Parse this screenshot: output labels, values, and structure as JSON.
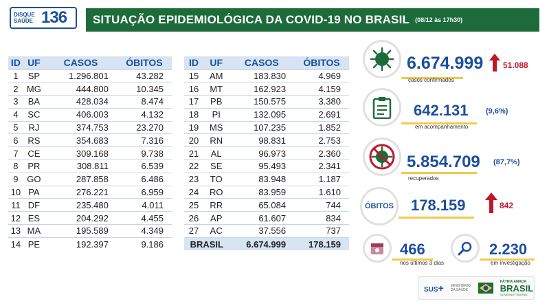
{
  "header": {
    "logo_small": "DISQUE SAÚDE",
    "logo_number": "136",
    "title": "SITUAÇÃO EPIDEMIOLÓGICA DA COVID-19 NO BRASIL",
    "date": "(08/12 às 17h30)"
  },
  "table": {
    "columns": [
      "ID",
      "UF",
      "CASOS",
      "ÓBITOS"
    ],
    "left_rows": [
      [
        "1",
        "SP",
        "1.296.801",
        "43.282"
      ],
      [
        "2",
        "MG",
        "444.800",
        "10.345"
      ],
      [
        "3",
        "BA",
        "428.034",
        "8.474"
      ],
      [
        "4",
        "SC",
        "406.003",
        "4.132"
      ],
      [
        "5",
        "RJ",
        "374.753",
        "23.270"
      ],
      [
        "6",
        "RS",
        "354.683",
        "7.316"
      ],
      [
        "7",
        "CE",
        "309.168",
        "9.738"
      ],
      [
        "8",
        "PR",
        "308.811",
        "6.539"
      ],
      [
        "9",
        "GO",
        "287.858",
        "6.486"
      ],
      [
        "10",
        "PA",
        "276.221",
        "6.959"
      ],
      [
        "11",
        "DF",
        "235.480",
        "4.011"
      ],
      [
        "12",
        "ES",
        "204.292",
        "4.455"
      ],
      [
        "13",
        "MA",
        "195.589",
        "4.349"
      ],
      [
        "14",
        "PE",
        "192.397",
        "9.186"
      ]
    ],
    "right_rows": [
      [
        "15",
        "AM",
        "183.830",
        "4.969"
      ],
      [
        "16",
        "MT",
        "162.923",
        "4.159"
      ],
      [
        "17",
        "PB",
        "150.575",
        "3.380"
      ],
      [
        "18",
        "PI",
        "132.095",
        "2.691"
      ],
      [
        "19",
        "MS",
        "107.235",
        "1.852"
      ],
      [
        "20",
        "RN",
        "98.831",
        "2.753"
      ],
      [
        "21",
        "AL",
        "96.973",
        "2.360"
      ],
      [
        "22",
        "SE",
        "95.493",
        "2.341"
      ],
      [
        "23",
        "TO",
        "83.948",
        "1.187"
      ],
      [
        "24",
        "RO",
        "83.959",
        "1.610"
      ],
      [
        "25",
        "RR",
        "65.084",
        "744"
      ],
      [
        "26",
        "AP",
        "61.607",
        "834"
      ],
      [
        "27",
        "AC",
        "37.556",
        "737"
      ]
    ],
    "total": {
      "label": "BRASIL",
      "casos": "6.674.999",
      "obitos": "178.159"
    }
  },
  "stats": {
    "confirmed": {
      "value": "6.674.999",
      "delta": "51.088",
      "label": "casos confirmados",
      "icon": "virus-icon"
    },
    "monitoring": {
      "value": "642.131",
      "pct": "(9,6%)",
      "label": "em acompanhamento",
      "icon": "clipboard-icon"
    },
    "recovered": {
      "value": "5.854.709",
      "pct": "(87,7%)",
      "label": "recuperados",
      "icon": "virus-crossed-icon"
    },
    "deaths": {
      "badge": "ÓBITOS",
      "value": "178.159",
      "delta": "842"
    },
    "last3": {
      "value": "466",
      "label": "nos últimos 3 dias",
      "icon": "calendar-icon"
    },
    "investigation": {
      "value": "2.230",
      "label": "em investigação",
      "icon": "magnifier-icon"
    }
  },
  "footer": {
    "sus": "SUS",
    "ministry": "MINISTÉRIO DA SAÚDE",
    "slogan": "PÁTRIA AMADA",
    "brasil": "BRASIL",
    "gov": "GOVERNO FEDERAL"
  },
  "colors": {
    "green": "#1d6b3a",
    "blue": "#1c4e9e",
    "red": "#c0172b",
    "orange": "#f2c94c",
    "header_bg": "#d6e4f3"
  }
}
